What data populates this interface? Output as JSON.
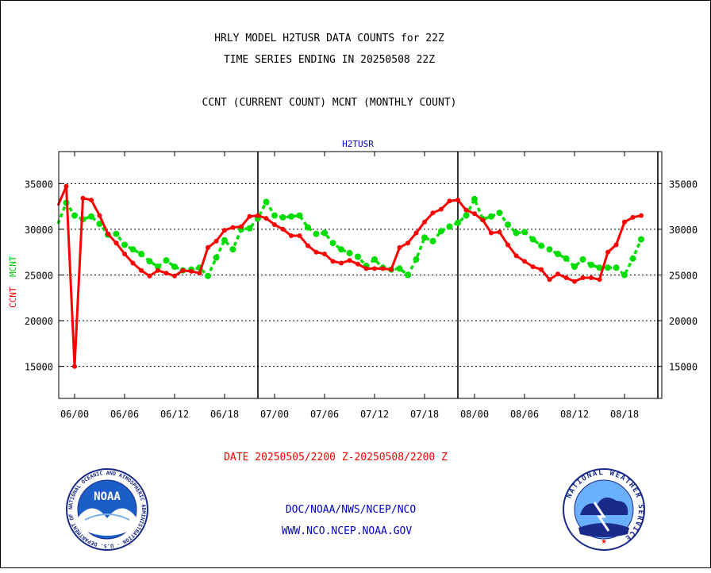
{
  "header": {
    "title_line1": "HRLY MODEL H2TUSR DATA COUNTS for 22Z",
    "title_line2": "TIME SERIES ENDING IN 20250508 22Z",
    "legend_line": "CCNT (CURRENT COUNT) MCNT (MONTHLY COUNT)"
  },
  "footer": {
    "date_range": "DATE 20250505/2200 Z-20250508/2200 Z",
    "org_path": "DOC/NOAA/NWS/NCEP/NCO",
    "website": "WWW.NCO.NCEP.NOAA.GOV",
    "noaa_logo_text": "NOAA",
    "noaa_ring_text": "NATIONAL OCEANIC AND ATMOSPHERIC ADMINISTRATION · U.S. DEPARTMENT OF COMMERCE ·",
    "nws_ring_text": "NATIONAL WEATHER SERVICE"
  },
  "colors": {
    "ccnt": "#ff0000",
    "mcnt": "#00dd00",
    "panel_label": "#0000cc",
    "footer_text": "#0000cc",
    "date_text": "#ff0000"
  },
  "chart_data": {
    "type": "line",
    "title": "H2TUSR",
    "ylabel_ccnt": "CCNT",
    "ylabel_mcnt": "MCNT",
    "ylim": [
      11500,
      38500
    ],
    "yticks": [
      15000,
      20000,
      25000,
      30000,
      35000
    ],
    "xlim": [
      -5,
      66
    ],
    "xticks": [
      {
        "x": 0,
        "label": "06/00"
      },
      {
        "x": 6,
        "label": "06/06"
      },
      {
        "x": 12,
        "label": "06/12"
      },
      {
        "x": 18,
        "label": "06/18"
      },
      {
        "x": 24,
        "label": "07/00"
      },
      {
        "x": 30,
        "label": "07/06"
      },
      {
        "x": 36,
        "label": "07/12"
      },
      {
        "x": 42,
        "label": "07/18"
      },
      {
        "x": 48,
        "label": "08/00"
      },
      {
        "x": 54,
        "label": "08/06"
      },
      {
        "x": 60,
        "label": "08/12"
      },
      {
        "x": 66,
        "label": "08/18"
      }
    ],
    "day_boundaries": [
      -2,
      22,
      46,
      70
    ],
    "x_start": -2,
    "grid": true,
    "series": [
      {
        "name": "CCNT",
        "values": [
          32600,
          34700,
          15000,
          33400,
          33200,
          31500,
          29500,
          28500,
          27300,
          26300,
          25500,
          24900,
          25500,
          25200,
          24900,
          25500,
          25400,
          25200,
          28000,
          28700,
          29900,
          30200,
          30300,
          31400,
          31500,
          31200,
          30500,
          30000,
          29300,
          29300,
          28200,
          27500,
          27300,
          26500,
          26300,
          26600,
          26200,
          25700,
          25700,
          25700,
          25600,
          28000,
          28500,
          29600,
          30800,
          31800,
          32200,
          33100,
          33200,
          32100,
          31700,
          31000,
          29600,
          29700,
          28300,
          27100,
          26500,
          25900,
          25600,
          24500,
          25100,
          24700,
          24300,
          24700,
          24700,
          24500,
          27500,
          28300,
          30800,
          31300,
          31500
        ]
      },
      {
        "name": "MCNT",
        "values": [
          30600,
          32900,
          31500,
          31100,
          31400,
          30600,
          29400,
          29500,
          28300,
          27800,
          27300,
          26500,
          25900,
          26600,
          25900,
          25500,
          25600,
          25800,
          24900,
          26900,
          28800,
          27800,
          30000,
          30100,
          31200,
          33000,
          31500,
          31300,
          31400,
          31500,
          30200,
          29500,
          29600,
          28500,
          27800,
          27400,
          27000,
          26000,
          26700,
          25800,
          25600,
          25700,
          25000,
          26700,
          29100,
          28700,
          29800,
          30300,
          30700,
          31500,
          33300,
          31100,
          31400,
          31800,
          30500,
          29600,
          29700,
          28900,
          28200,
          27800,
          27300,
          26800,
          25900,
          26700,
          26100,
          25800,
          25800,
          25800,
          25000,
          26800,
          28900
        ]
      }
    ]
  }
}
